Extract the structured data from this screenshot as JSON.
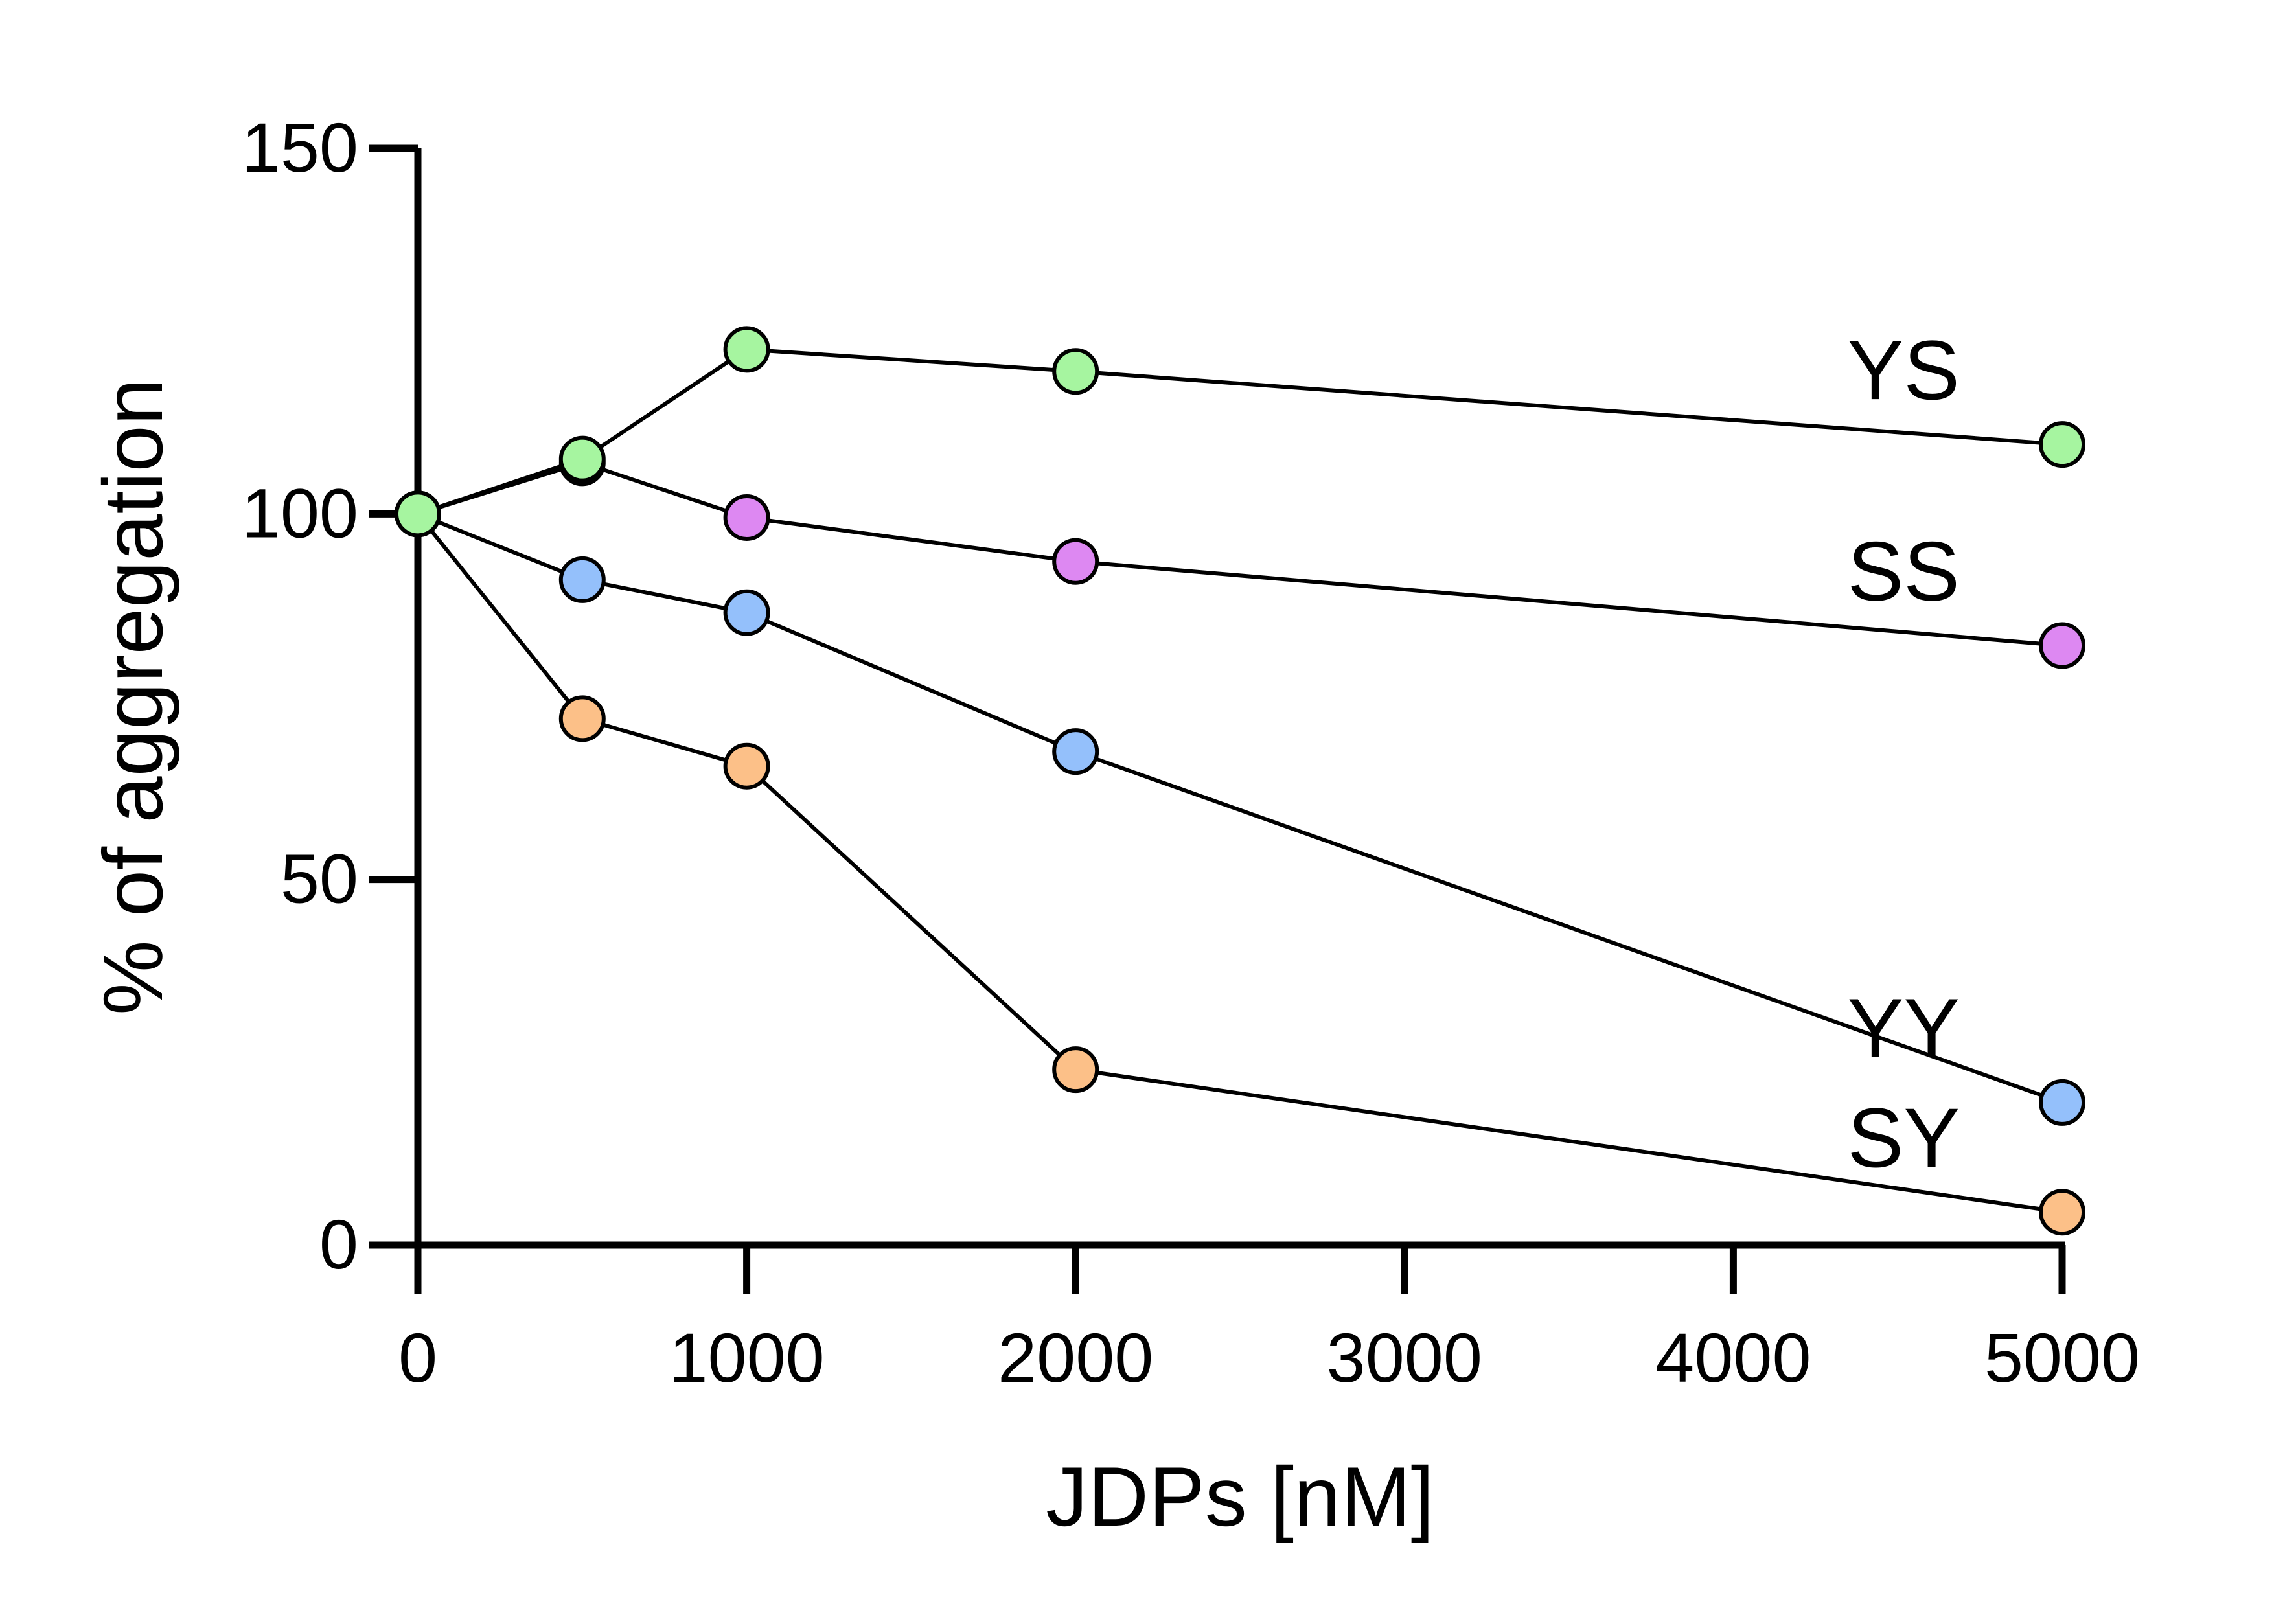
{
  "chart_data": {
    "type": "line",
    "title": "",
    "xlabel": "JDPs [nM]",
    "ylabel": "% of aggregation",
    "xlim": [
      0,
      5000
    ],
    "ylim": [
      0,
      150
    ],
    "xticks": [
      0,
      1000,
      2000,
      3000,
      4000,
      5000
    ],
    "yticks": [
      0,
      50,
      100,
      150
    ],
    "grid": false,
    "legend": "inline labels at right end of each series",
    "series": [
      {
        "name": "YS",
        "color": "#a6f5a0",
        "x": [
          0,
          500,
          1000,
          2000,
          5000
        ],
        "y": [
          100,
          107.5,
          122.5,
          119.5,
          109.5
        ]
      },
      {
        "name": "SS",
        "color": "#dd88f2",
        "x": [
          0,
          500,
          1000,
          2000,
          5000
        ],
        "y": [
          100,
          107,
          99.5,
          93.5,
          82
        ]
      },
      {
        "name": "YY",
        "color": "#94c0fb",
        "x": [
          0,
          500,
          1000,
          2000,
          5000
        ],
        "y": [
          100,
          91,
          86.5,
          67.5,
          19.5
        ]
      },
      {
        "name": "SY",
        "color": "#fcc088",
        "x": [
          0,
          500,
          1000,
          2000,
          5000
        ],
        "y": [
          100,
          72,
          65.5,
          24,
          4.5
        ]
      }
    ]
  }
}
